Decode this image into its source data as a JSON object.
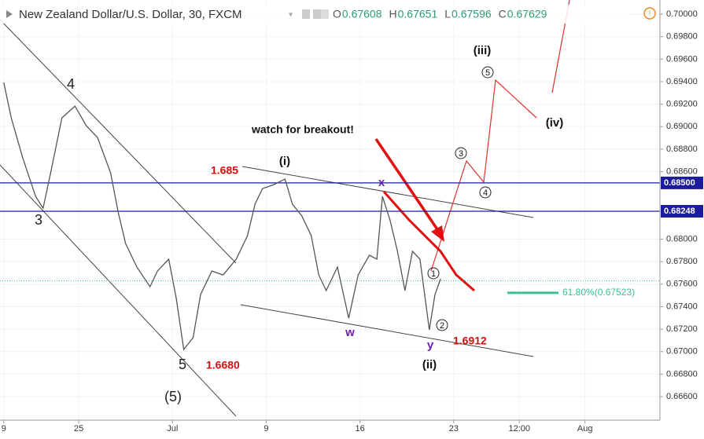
{
  "chart_data": {
    "type": "line",
    "title": "New Zealand Dollar/U.S. Dollar, 30, FXCM",
    "ohlc": [
      {
        "key": "O",
        "value": 0.67608
      },
      {
        "key": "H",
        "value": 0.67651
      },
      {
        "key": "L",
        "value": 0.67596
      },
      {
        "key": "C",
        "value": 0.67629
      }
    ],
    "series": [
      {
        "color": "#555555",
        "x": [
          0,
          0.4,
          1.0,
          1.7,
          2.1,
          2.5,
          3.1,
          3.8,
          4.4,
          5.0,
          5.7,
          6.1,
          6.5,
          7.1,
          7.8,
          8.2,
          8.8,
          9.2,
          9.6,
          10.1,
          10.5,
          11.1,
          11.7,
          12.4,
          13.0,
          13.4,
          13.8,
          14.4,
          15.0,
          15.4,
          15.9,
          16.4,
          16.8,
          17.2,
          17.8,
          18.4,
          18.9,
          19.5,
          19.9,
          20.2,
          20.6,
          21.0,
          21.4,
          21.8,
          22.2,
          22.7,
          23.0,
          23.3
        ],
        "values": [
          0.69393,
          0.69078,
          0.68729,
          0.6838,
          0.68275,
          0.6859,
          0.69078,
          0.69183,
          0.69009,
          0.68904,
          0.6859,
          0.68241,
          0.67961,
          0.67752,
          0.67577,
          0.67717,
          0.67822,
          0.67473,
          0.67019,
          0.67124,
          0.67508,
          0.67717,
          0.67682,
          0.67822,
          0.68031,
          0.68311,
          0.6845,
          0.68485,
          0.68534,
          0.68311,
          0.68206,
          0.68031,
          0.67682,
          0.67543,
          0.67752,
          0.67298,
          0.67682,
          0.67857,
          0.67822,
          0.6838,
          0.68171,
          0.67892,
          0.67543,
          0.67892,
          0.67822,
          0.67194,
          0.67508,
          0.67647
        ]
      }
    ],
    "levels": [
      {
        "value": 0.685,
        "label": "0.68500",
        "color": "#1c1c9c"
      },
      {
        "value": 0.68248,
        "label": "0.68248",
        "color": "#1c1c9c"
      }
    ],
    "fib": {
      "value": 0.67523,
      "label": "61.80%(0.67523)",
      "color": "#3bbf94"
    },
    "xlim": [
      -0.2,
      35
    ],
    "xticks": [
      {
        "value": 0,
        "label": "9"
      },
      {
        "value": 4,
        "label": "25"
      },
      {
        "value": 9,
        "label": "Jul"
      },
      {
        "value": 14,
        "label": "9"
      },
      {
        "value": 19,
        "label": "16"
      },
      {
        "value": 24,
        "label": "23"
      },
      {
        "value": 27.5,
        "label": "12:00"
      },
      {
        "value": 31,
        "label": "Aug"
      }
    ],
    "ylim": [
      0.66391,
      0.70126
    ],
    "yticks": [
      {
        "value": 0.7,
        "label": "0.70000"
      },
      {
        "value": 0.698,
        "label": "0.69800"
      },
      {
        "value": 0.696,
        "label": "0.69600"
      },
      {
        "value": 0.694,
        "label": "0.69400"
      },
      {
        "value": 0.692,
        "label": "0.69200"
      },
      {
        "value": 0.69,
        "label": "0.69000"
      },
      {
        "value": 0.688,
        "label": "0.68800"
      },
      {
        "value": 0.686,
        "label": "0.68600"
      },
      {
        "value": 0.68,
        "label": "0.68000"
      },
      {
        "value": 0.678,
        "label": "0.67800"
      },
      {
        "value": 0.676,
        "label": "0.67600"
      },
      {
        "value": 0.674,
        "label": "0.67400"
      },
      {
        "value": 0.672,
        "label": "0.67200"
      },
      {
        "value": 0.67,
        "label": "0.67000"
      },
      {
        "value": 0.668,
        "label": "0.66800"
      },
      {
        "value": 0.666,
        "label": "0.66600"
      }
    ],
    "annotations": {
      "wave_4": "4",
      "wave_3": "3",
      "wave_5": "5",
      "wave_5_big": "(5)",
      "low_label": "1.6680",
      "high_label": "1.685",
      "wave_i": "(i)",
      "wave_x": "x",
      "wave_w": "w",
      "wave_y": "y",
      "wave_ii": "(ii)",
      "low2_label": "1.6912",
      "wave_iii": "(iii)",
      "wave_iv": "(iv)",
      "callout": "watch for breakout!",
      "c1": "1",
      "c2": "2",
      "c3": "3",
      "c4": "4",
      "c5": "5"
    }
  }
}
